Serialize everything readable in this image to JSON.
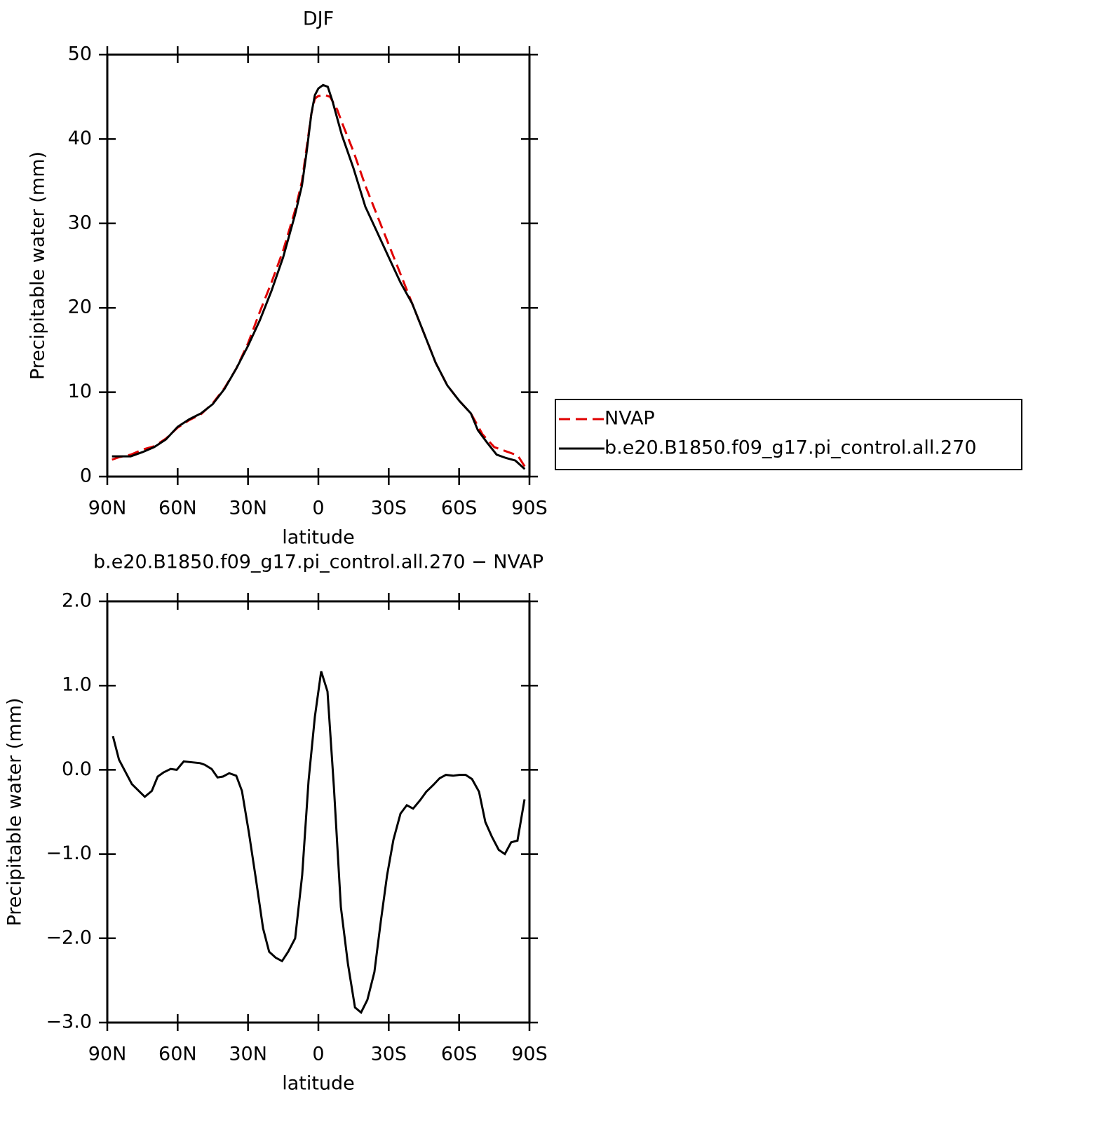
{
  "chart_data": [
    {
      "type": "line",
      "title": "DJF",
      "xlabel": "latitude",
      "ylabel": "Precipitable water (mm)",
      "xlim": [
        90,
        -90
      ],
      "xticks": [
        {
          "value": 90,
          "label": "90N"
        },
        {
          "value": 60,
          "label": "60N"
        },
        {
          "value": 30,
          "label": "30N"
        },
        0,
        {
          "value": -30,
          "label": "30S"
        },
        {
          "value": -60,
          "label": "60S"
        },
        {
          "value": -90,
          "label": "90S"
        }
      ],
      "ylim": [
        0,
        50
      ],
      "yticks": [
        0,
        10,
        20,
        30,
        40,
        50
      ],
      "legend_position": "right",
      "series": [
        {
          "name": "NVAP",
          "color": "#e00000",
          "dash": true,
          "x": [
            88,
            85,
            80,
            75,
            70,
            65,
            60,
            55,
            50,
            45,
            40,
            35,
            30,
            25,
            20,
            15,
            10,
            7,
            5,
            3,
            1.5,
            0,
            -3,
            -5,
            -8,
            -10,
            -15,
            -20,
            -25,
            -30,
            -35,
            -40,
            -45,
            -50,
            -55,
            -60,
            -65,
            -70,
            -75,
            -80,
            -85,
            -88
          ],
          "values": [
            2.0,
            2.3,
            2.6,
            3.2,
            3.6,
            4.5,
            5.8,
            6.7,
            7.4,
            8.7,
            10.5,
            12.8,
            15.8,
            19.5,
            23,
            26.8,
            31.5,
            35,
            39,
            43,
            44.8,
            45.1,
            45.2,
            45,
            43.5,
            42,
            38.5,
            34.5,
            31,
            27.5,
            24,
            20.5,
            17,
            13.5,
            10.8,
            9,
            7.5,
            5,
            3.5,
            3,
            2.5,
            1.2
          ]
        },
        {
          "name": "b.e20.B1850.f09_g17.pi_control.all.270",
          "color": "#000000",
          "dash": false,
          "x": [
            88,
            85,
            80,
            75,
            70,
            65,
            60,
            55,
            50,
            45,
            40,
            35,
            30,
            25,
            20,
            15,
            10,
            7,
            5,
            3,
            1.5,
            0,
            -2,
            -4,
            -6,
            -10,
            -15,
            -20,
            -25,
            -30,
            -35,
            -40,
            -45,
            -50,
            -55,
            -60,
            -65,
            -68,
            -72,
            -76,
            -80,
            -84,
            -88
          ],
          "values": [
            2.4,
            2.4,
            2.4,
            2.9,
            3.5,
            4.4,
            5.9,
            6.8,
            7.5,
            8.6,
            10.4,
            12.8,
            15.5,
            18.5,
            22,
            26,
            31,
            34.5,
            38.5,
            43,
            45.2,
            46,
            46.4,
            46.2,
            44.5,
            40.5,
            36.5,
            32,
            29,
            26,
            23,
            20.5,
            17,
            13.5,
            10.8,
            9,
            7.5,
            5.5,
            4,
            2.6,
            2.2,
            1.9,
            0.9
          ]
        }
      ]
    },
    {
      "type": "line",
      "title": "b.e20.B1850.f09_g17.pi_control.all.270 − NVAP",
      "xlabel": "latitude",
      "ylabel": "Precipitable water (mm)",
      "xlim": [
        90,
        -90
      ],
      "xticks": [
        {
          "value": 90,
          "label": "90N"
        },
        {
          "value": 60,
          "label": "60N"
        },
        {
          "value": 30,
          "label": "30N"
        },
        0,
        {
          "value": -30,
          "label": "30S"
        },
        {
          "value": -60,
          "label": "60S"
        },
        {
          "value": -90,
          "label": "90S"
        }
      ],
      "ylim": [
        -3,
        2
      ],
      "yticks": [
        {
          "value": -3,
          "label": "−3.0"
        },
        {
          "value": -2,
          "label": "−2.0"
        },
        {
          "value": -1,
          "label": "−1.0"
        },
        {
          "value": 0,
          "label": "0.0"
        },
        {
          "value": 1,
          "label": "1.0"
        },
        {
          "value": 2,
          "label": "2.0"
        }
      ],
      "series": [
        {
          "color": "#000000",
          "dash": false,
          "x": [
            87.6,
            85,
            79.5,
            74,
            71,
            68.5,
            66,
            63,
            60.4,
            57.4,
            50.5,
            48.4,
            45.5,
            43,
            40.7,
            38,
            35,
            32.6,
            29.6,
            26.6,
            23.6,
            21,
            18.2,
            15.5,
            12.9,
            9.9,
            6.9,
            4.2,
            1.5,
            -1.2,
            -3.9,
            -6.6,
            -9.6,
            -12.6,
            -15.6,
            -18.2,
            -20.9,
            -23.9,
            -26.6,
            -29.3,
            -32,
            -35,
            -37.7,
            -40.4,
            -43.4,
            -46,
            -49,
            -51.7,
            -54.4,
            -57.4,
            -60.1,
            -62.8,
            -65.5,
            -68.5,
            -71.2,
            -73.9,
            -76.9,
            -79.5,
            -82.2,
            -84.9,
            -87.9
          ],
          "values": [
            0.4,
            0.12,
            -0.17,
            -0.32,
            -0.25,
            -0.08,
            -0.03,
            0.01,
            0.0,
            0.1,
            0.08,
            0.06,
            0.01,
            -0.09,
            -0.08,
            -0.04,
            -0.07,
            -0.25,
            -0.75,
            -1.3,
            -1.88,
            -2.16,
            -2.23,
            -2.27,
            -2.16,
            -2.0,
            -1.25,
            -0.13,
            0.63,
            1.17,
            0.93,
            -0.2,
            -1.63,
            -2.3,
            -2.82,
            -2.88,
            -2.73,
            -2.4,
            -1.8,
            -1.25,
            -0.83,
            -0.52,
            -0.42,
            -0.46,
            -0.36,
            -0.26,
            -0.18,
            -0.1,
            -0.06,
            -0.07,
            -0.06,
            -0.06,
            -0.11,
            -0.26,
            -0.62,
            -0.79,
            -0.95,
            -1.0,
            -0.86,
            -0.84,
            -0.35
          ]
        }
      ]
    }
  ]
}
